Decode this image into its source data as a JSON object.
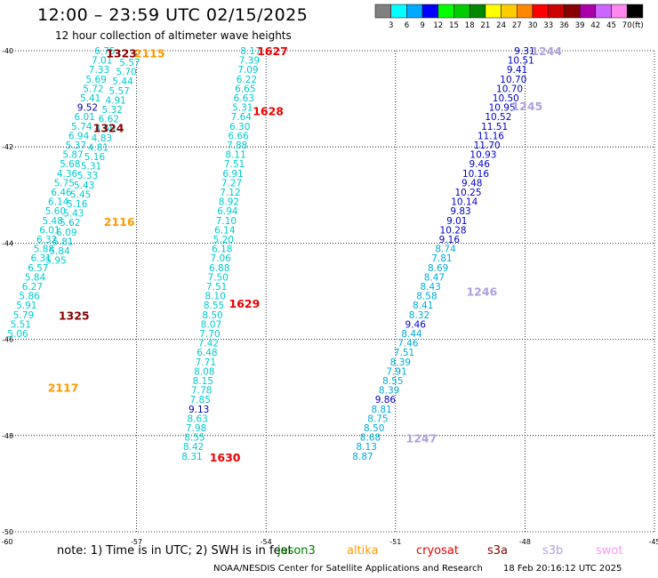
{
  "title": "12:00 – 23:59 UTC 02/15/2025",
  "subtitle": "12 hour collection of altimeter wave heights",
  "note": "note:  1) Time is in UTC; 2) SWH is in feet",
  "credit": "NOAA/NESDIS Center for Satellite Applications and Research",
  "timestamp": "18 Feb 20:16:12 UTC 2025",
  "satellites": [
    {
      "name": "jason3",
      "color": "#007a00"
    },
    {
      "name": "altika",
      "color": "#ff9900"
    },
    {
      "name": "cryosat",
      "color": "#ee0000"
    },
    {
      "name": "s3a",
      "color": "#880000"
    },
    {
      "name": "s3b",
      "color": "#b0a0e0"
    },
    {
      "name": "swot",
      "color": "#ff99ee"
    }
  ],
  "colorbar": {
    "unit": "(ft)",
    "bins": [
      {
        "label": "3",
        "color": "#808080"
      },
      {
        "label": "6",
        "color": "#00ffff"
      },
      {
        "label": "9",
        "color": "#00aaff"
      },
      {
        "label": "12",
        "color": "#0000ff"
      },
      {
        "label": "15",
        "color": "#00ff00"
      },
      {
        "label": "18",
        "color": "#00cc00"
      },
      {
        "label": "21",
        "color": "#008800"
      },
      {
        "label": "24",
        "color": "#ffff00"
      },
      {
        "label": "27",
        "color": "#ffcc00"
      },
      {
        "label": "30",
        "color": "#ff8800"
      },
      {
        "label": "33",
        "color": "#ff0000"
      },
      {
        "label": "36",
        "color": "#cc0000"
      },
      {
        "label": "39",
        "color": "#880000"
      },
      {
        "label": "42",
        "color": "#aa00aa"
      },
      {
        "label": "45",
        "color": "#cc66ff"
      },
      {
        "label": "70",
        "color": "#ff88ee"
      },
      {
        "label": "",
        "color": "#000000"
      }
    ]
  },
  "map": {
    "lon_range": [
      -60,
      -45
    ],
    "lat_range": [
      -50,
      -40
    ],
    "lon_ticks": [
      "-60",
      "-57",
      "-54",
      "-51",
      "-48",
      "-45"
    ],
    "lat_ticks": [
      "-40",
      "-42",
      "-44",
      "-46",
      "-48",
      "-50"
    ],
    "grid": true
  },
  "tracks": [
    {
      "name": "track-a",
      "x0": 118,
      "x1": 20,
      "y0": 57,
      "dy": 10.6,
      "color": "#00cccc",
      "values": [
        "6.75",
        "7.01",
        "7.33",
        "5.69",
        "5.72",
        "5.41",
        "9.52",
        "6.01",
        "5.74",
        "6.94",
        "5.37",
        "5.87",
        "5.68",
        "4.36",
        "5.75",
        "6.46",
        "6.14",
        "5.60",
        "5.48",
        "6.01",
        "6.32",
        "5.88",
        "6.31",
        "6.57",
        "5.84",
        "6.27",
        "5.86",
        "5.91",
        "5.79",
        "5.51",
        "5.06"
      ]
    },
    {
      "name": "track-b",
      "x0": 146,
      "x1": 63,
      "y0": 70,
      "dy": 10.6,
      "color": "#00cccc",
      "values": [
        "5.57",
        "5.70",
        "5.44",
        "5.57",
        "4.91",
        "5.32",
        "6.62",
        "4.66",
        "4.83",
        "4.81",
        "5.16",
        "5.31",
        "5.33",
        "5.43",
        "5.45",
        "5.16",
        "5.43",
        "5.62",
        "6.09",
        "5.81",
        "5.84",
        "5.95"
      ]
    },
    {
      "name": "track-c",
      "x0": 282,
      "x1": 216,
      "y0": 57,
      "dy": 10.6,
      "color": "#00cccc",
      "values": [
        "8.17",
        "7.39",
        "7.09",
        "6.22",
        "6.65",
        "6.63",
        "5.31",
        "7.64",
        "6.30",
        "6.66",
        "7.88",
        "8.11",
        "7.51",
        "6.91",
        "7.27",
        "7.12",
        "8.92",
        "6.94",
        "7.10",
        "6.14",
        "5.20",
        "6.18",
        "7.06",
        "6.88",
        "7.50",
        "7.51",
        "8.10",
        "8.55",
        "8.50",
        "8.07",
        "7.70",
        "7.42",
        "6.48",
        "7.71",
        "8.08",
        "8.15",
        "7.78",
        "7.85",
        "9.13",
        "8.63",
        "7.98",
        "8.55",
        "8.42",
        "8.31"
      ]
    },
    {
      "name": "track-d",
      "x0": 590,
      "x1": 408,
      "y0": 57,
      "dy": 10.6,
      "color": "#0000cc",
      "values": [
        "9.31",
        "10.51",
        "9.41",
        "10.70",
        "10.70",
        "10.50",
        "10.95",
        "10.52",
        "11.51",
        "11.16",
        "11.70",
        "10.93",
        "9.46",
        "10.16",
        "9.48",
        "10.25",
        "10.14",
        "9.83",
        "9.01",
        "10.28",
        "9.16",
        "8.74",
        "7.81",
        "8.69",
        "8.47",
        "8.43",
        "8.58",
        "8.41",
        "8.32",
        "9.46",
        "8.44",
        "7.46",
        "7.51",
        "8.39",
        "7.91",
        "8.55",
        "8.39",
        "9.86",
        "8.81",
        "8.75",
        "8.50",
        "8.68",
        "8.13",
        "8.87"
      ]
    }
  ],
  "pass_labels": [
    {
      "text": "1323",
      "color": "#880000",
      "lon": -57.35,
      "lat": -40.05
    },
    {
      "text": "2115",
      "color": "#ff9900",
      "lon": -56.7,
      "lat": -40.05
    },
    {
      "text": "1324",
      "color": "#880000",
      "lon": -57.65,
      "lat": -41.6
    },
    {
      "text": "2116",
      "color": "#ff9900",
      "lon": -57.4,
      "lat": -43.55
    },
    {
      "text": "1325",
      "color": "#880000",
      "lon": -58.45,
      "lat": -45.5
    },
    {
      "text": "2117",
      "color": "#ff9900",
      "lon": -58.7,
      "lat": -47.0
    },
    {
      "text": "1627",
      "color": "#ee0000",
      "lon": -53.85,
      "lat": -40.0
    },
    {
      "text": "1628",
      "color": "#ee0000",
      "lon": -53.95,
      "lat": -41.25
    },
    {
      "text": "1629",
      "color": "#ee0000",
      "lon": -54.5,
      "lat": -45.25
    },
    {
      "text": "1630",
      "color": "#ee0000",
      "lon": -54.95,
      "lat": -48.45
    },
    {
      "text": "1244",
      "color": "#b0a0e0",
      "lon": -47.5,
      "lat": -40.0
    },
    {
      "text": "1245",
      "color": "#b0a0e0",
      "lon": -47.95,
      "lat": -41.15
    },
    {
      "text": "1246",
      "color": "#b0a0e0",
      "lon": -49.0,
      "lat": -45.0
    },
    {
      "text": "1247",
      "color": "#b0a0e0",
      "lon": -50.4,
      "lat": -48.05
    }
  ]
}
